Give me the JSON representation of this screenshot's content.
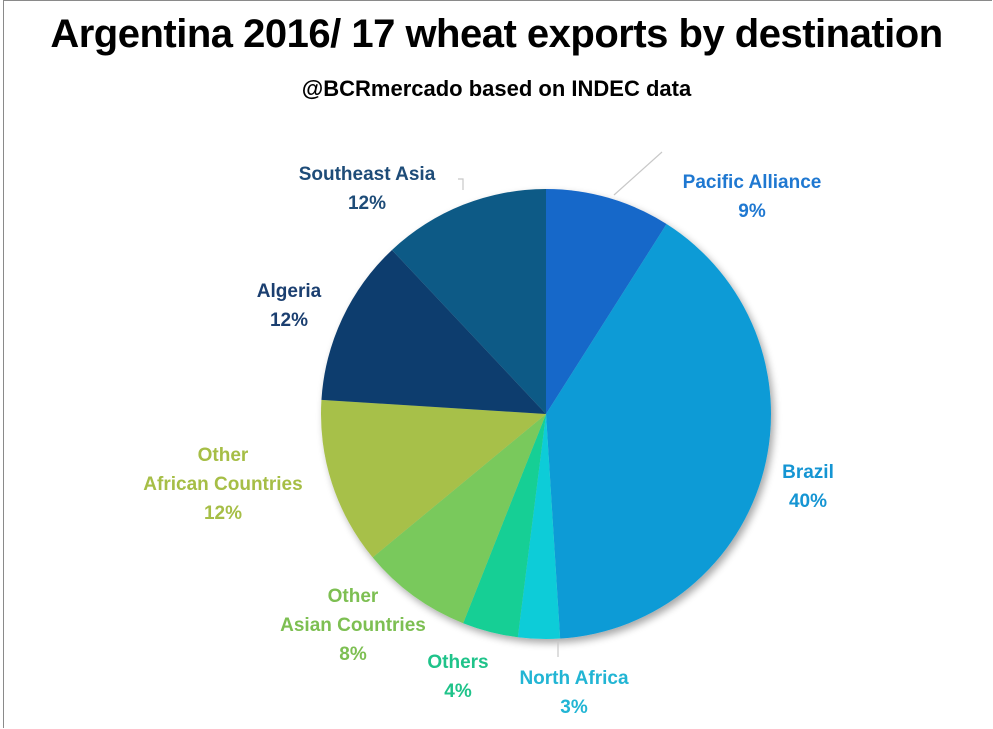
{
  "chart_data": {
    "type": "pie",
    "title": "Argentina 2016/ 17 wheat exports by destination",
    "subtitle": "@BCRmercado based on INDEC data",
    "slices": [
      {
        "lines": [
          "Pacific Alliance"
        ],
        "value": 9,
        "pct": "9%",
        "color": "#1567C9",
        "text_color": "#1F78D1"
      },
      {
        "lines": [
          "Brazil"
        ],
        "value": 40,
        "pct": "40%",
        "color": "#0B9BD6",
        "text_color": "#1595D3"
      },
      {
        "lines": [
          "North Africa"
        ],
        "value": 3,
        "pct": "3%",
        "color": "#10CCD8",
        "text_color": "#22B5D4"
      },
      {
        "lines": [
          "Others"
        ],
        "value": 4,
        "pct": "4%",
        "color": "#13CF95",
        "text_color": "#1FC38A"
      },
      {
        "lines": [
          "Other",
          "Asian Countries"
        ],
        "value": 8,
        "pct": "8%",
        "color": "#79C95C",
        "text_color": "#7DBF52"
      },
      {
        "lines": [
          "Other",
          "African Countries"
        ],
        "value": 12,
        "pct": "12%",
        "color": "#A7C04A",
        "text_color": "#A6BE46"
      },
      {
        "lines": [
          "Algeria"
        ],
        "value": 12,
        "pct": "12%",
        "color": "#0D3E6E",
        "text_color": "#1B3F70"
      },
      {
        "lines": [
          "Southeast Asia"
        ],
        "value": 12,
        "pct": "12%",
        "color": "#0C5A86",
        "text_color": "#1E4C78"
      }
    ]
  }
}
